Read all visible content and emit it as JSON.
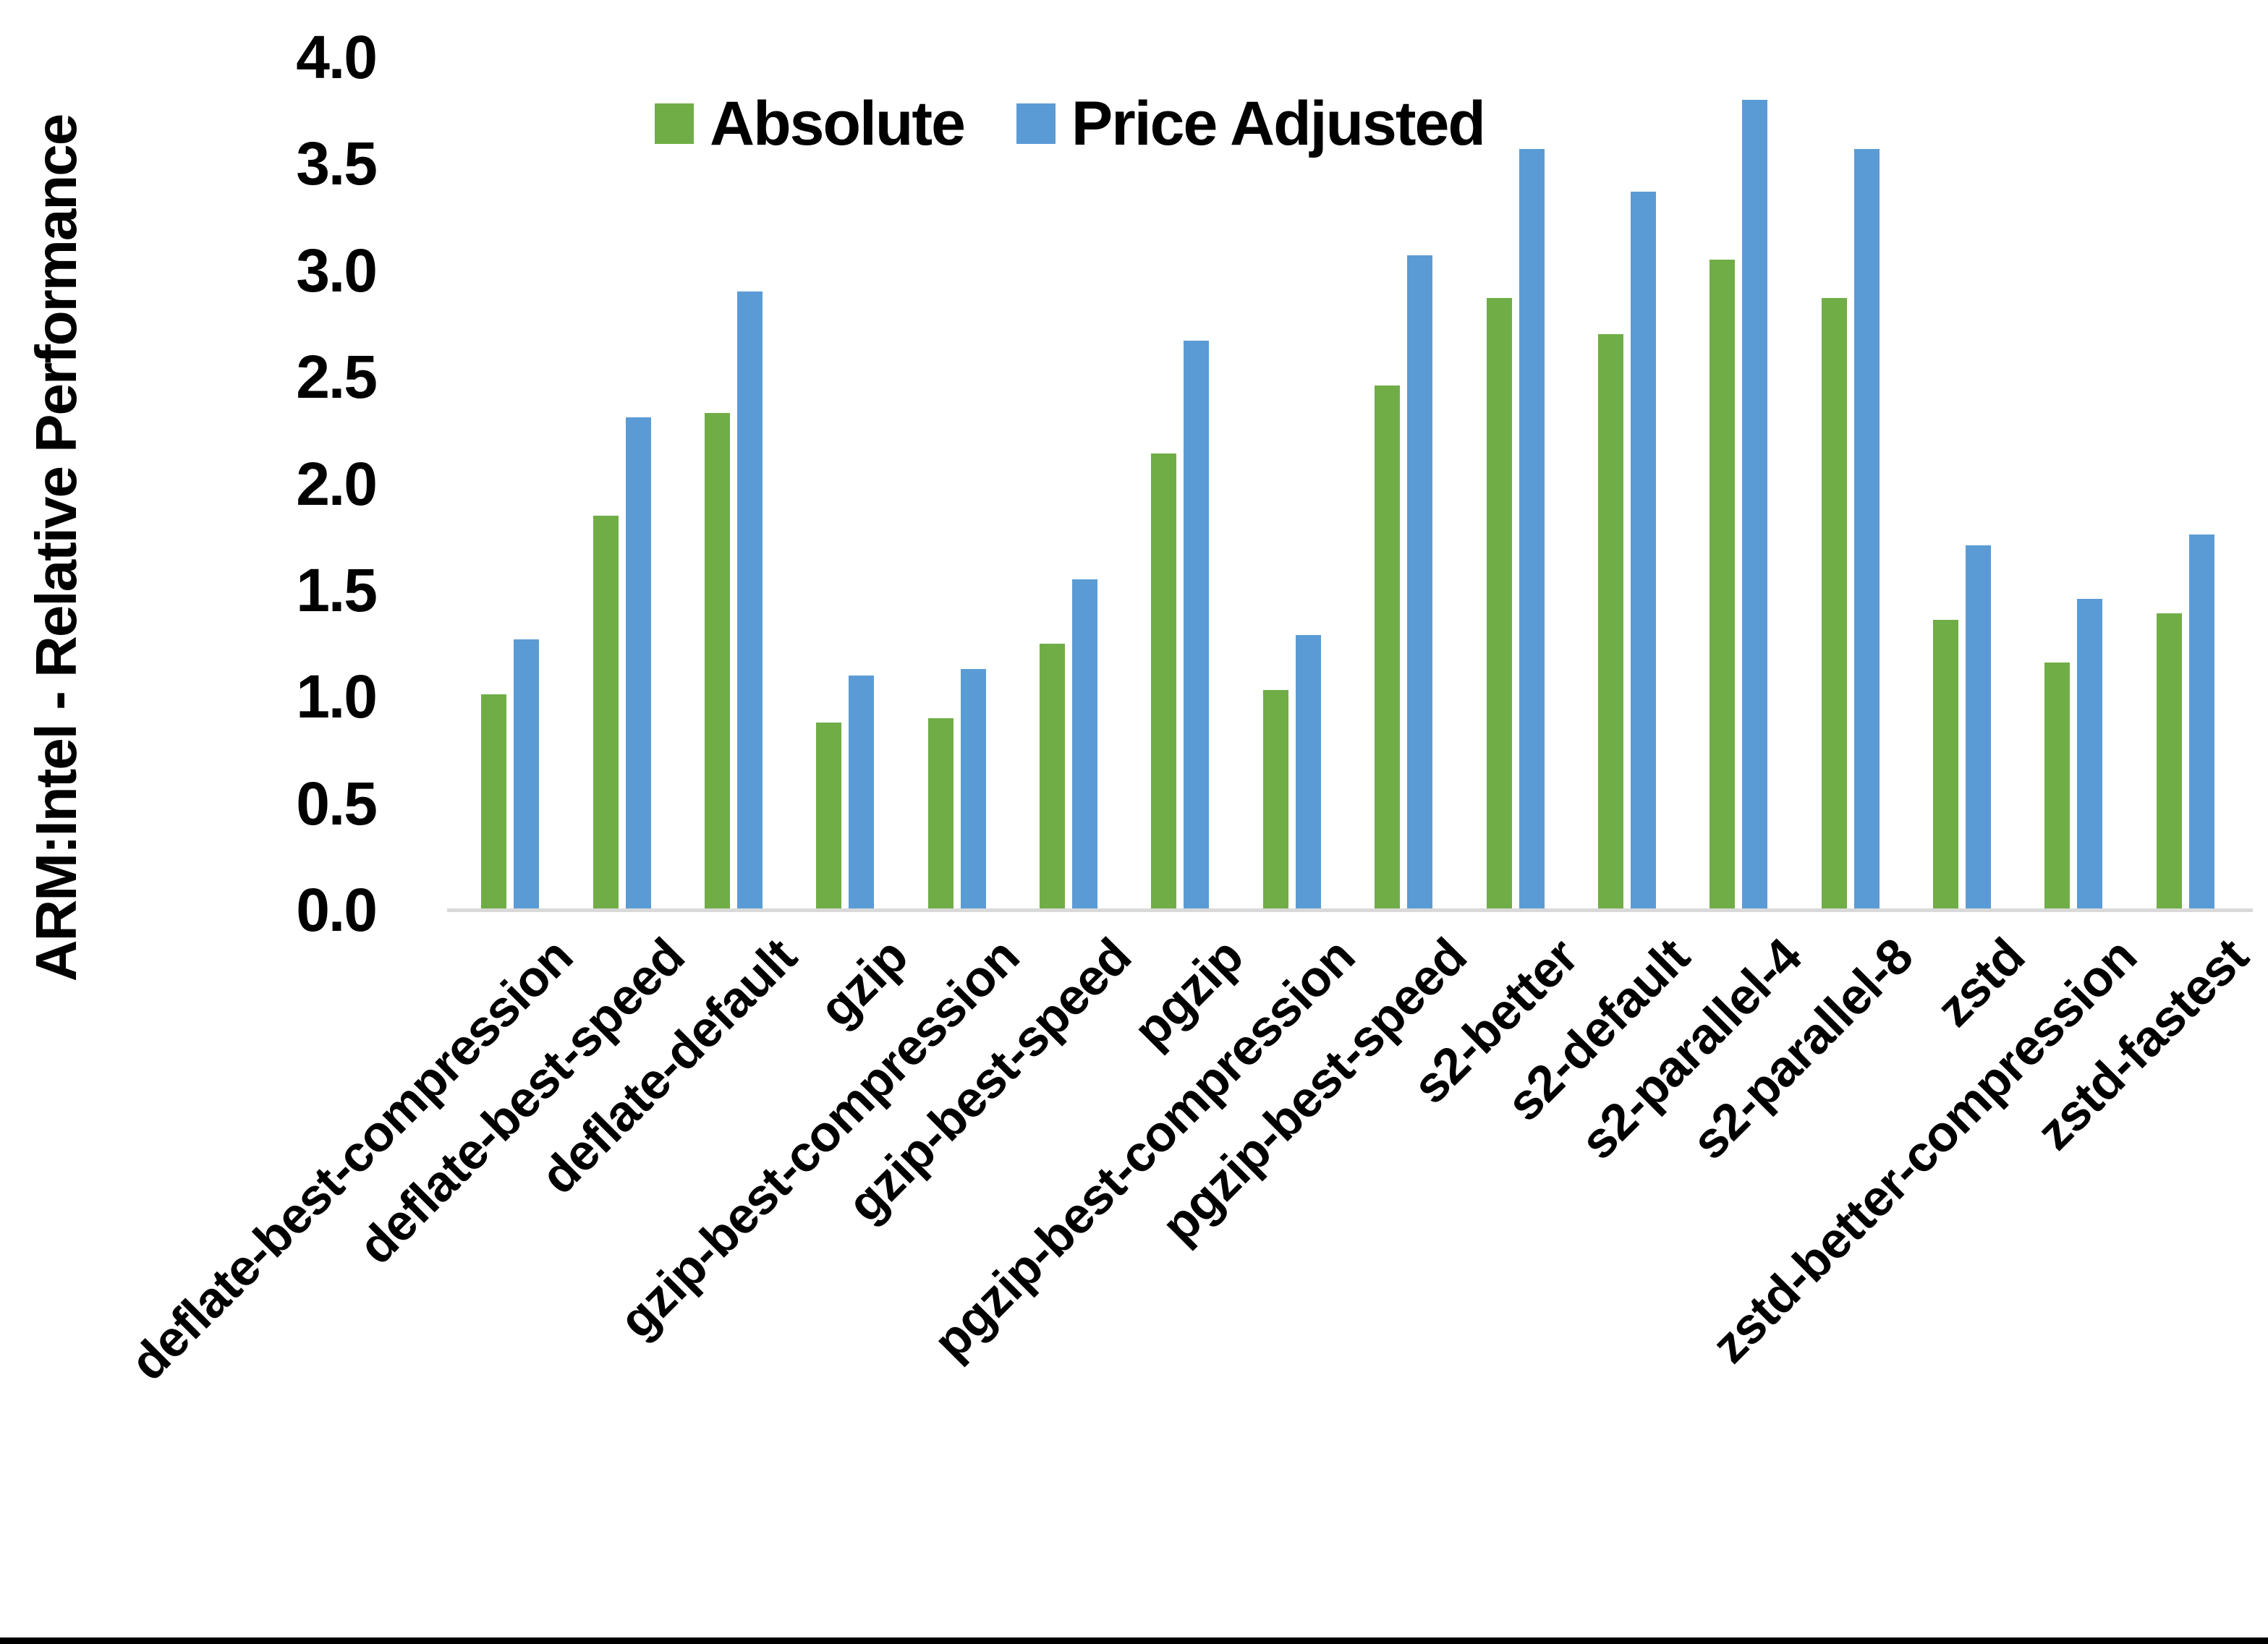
{
  "figure": {
    "background": "#ffffff",
    "text_color": "#000000",
    "bottom_bar_color": "#000000"
  },
  "chart_data": {
    "type": "bar",
    "title": "",
    "xlabel": "",
    "ylabel": "ARM:Intel - Relative Performance",
    "ylim": [
      0,
      4.0
    ],
    "y_tick_step": 0.5,
    "y_ticks": [
      "4.0",
      "3.5",
      "3.0",
      "2.5",
      "2.0",
      "1.5",
      "1.0",
      "0.5",
      "0.0"
    ],
    "grid": false,
    "legend_position": "top-center",
    "axis_line_color": "#D9D9D9",
    "categories": [
      "deflate-best-compression",
      "deflate-best-speed",
      "deflate-default",
      "gzip",
      "gzip-best-compression",
      "gzip-best-speed",
      "pgzip",
      "pgzip-best-compression",
      "pgzip-best-speed",
      "s2-better",
      "s2-default",
      "s2-parallel-4",
      "s2-parallel-8",
      "zstd",
      "zstd-better-compression",
      "zstd-fastest"
    ],
    "series": [
      {
        "name": "Absolute",
        "color": "#70AD47",
        "values": [
          1.01,
          1.85,
          2.33,
          0.88,
          0.9,
          1.25,
          2.14,
          1.03,
          2.46,
          2.87,
          2.7,
          3.05,
          2.87,
          1.36,
          1.16,
          1.39
        ]
      },
      {
        "name": "Price Adjusted",
        "color": "#5B9BD5",
        "values": [
          1.27,
          2.31,
          2.9,
          1.1,
          1.13,
          1.55,
          2.67,
          1.29,
          3.07,
          3.57,
          3.37,
          3.8,
          3.57,
          1.71,
          1.46,
          1.76
        ]
      }
    ]
  }
}
